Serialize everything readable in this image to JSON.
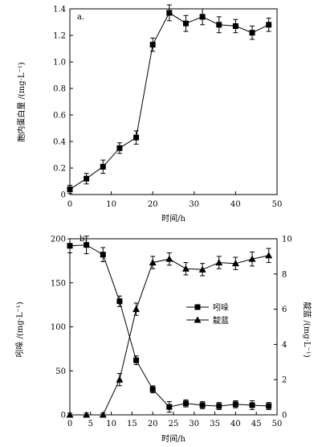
{
  "chart_data": [
    {
      "type": "line",
      "panel_label": "a.",
      "xlabel": "时间/h",
      "ylabel": "胞内蛋白量 /(mg·L⁻¹)",
      "xlim": [
        0,
        50
      ],
      "ylim": [
        0,
        1.4
      ],
      "xticks": [
        0,
        10,
        20,
        30,
        40,
        50
      ],
      "yticks": [
        0,
        0.2,
        0.4,
        0.6,
        0.8,
        1.0,
        1.2,
        1.4
      ],
      "ytick_labels": [
        "0",
        "0.2",
        "0.4",
        "0.6",
        "0.8",
        "1.0",
        "1.2",
        "1.4"
      ],
      "grid": false,
      "series": [
        {
          "marker": "square",
          "x": [
            0,
            4,
            8,
            12,
            16,
            20,
            24,
            28,
            32,
            36,
            40,
            44,
            48
          ],
          "y": [
            0.04,
            0.12,
            0.21,
            0.35,
            0.43,
            1.13,
            1.37,
            1.29,
            1.34,
            1.28,
            1.27,
            1.22,
            1.28
          ],
          "err": [
            0.03,
            0.04,
            0.05,
            0.04,
            0.05,
            0.05,
            0.06,
            0.06,
            0.06,
            0.06,
            0.05,
            0.05,
            0.05
          ]
        }
      ]
    },
    {
      "type": "line",
      "panel_label": "b.",
      "xlabel": "时间/h",
      "ylabel": "吲哚 /(mg·L⁻¹)",
      "y2label": "靛蓝 /(mg·L⁻¹)",
      "xlim": [
        0,
        50
      ],
      "ylim": [
        0,
        200
      ],
      "y2lim": [
        0,
        10
      ],
      "xticks": [
        0,
        5,
        10,
        15,
        20,
        25,
        30,
        35,
        40,
        45,
        50
      ],
      "yticks": [
        0,
        50,
        100,
        150,
        200
      ],
      "y2ticks": [
        0,
        2,
        4,
        6,
        8,
        10
      ],
      "legend_position": "center-right",
      "grid": false,
      "series": [
        {
          "name": "吲哚",
          "axis": "left",
          "marker": "square",
          "x": [
            0,
            4,
            8,
            12,
            16,
            20,
            24,
            28,
            32,
            36,
            40,
            44,
            48
          ],
          "y": [
            192,
            193,
            182,
            129,
            62,
            29,
            9,
            13,
            11,
            10,
            12,
            11,
            10
          ],
          "err": [
            8,
            10,
            8,
            6,
            5,
            4,
            6,
            4,
            4,
            4,
            4,
            5,
            4
          ]
        },
        {
          "name": "靛蓝",
          "axis": "right",
          "marker": "triangle",
          "x": [
            0,
            4,
            8,
            12,
            16,
            20,
            24,
            28,
            32,
            36,
            40,
            44,
            48
          ],
          "y": [
            0,
            0,
            0,
            2.0,
            6.0,
            8.65,
            8.85,
            8.3,
            8.25,
            8.65,
            8.6,
            8.85,
            9.05
          ],
          "err": [
            0.1,
            0.1,
            0.1,
            0.35,
            0.35,
            0.35,
            0.35,
            0.35,
            0.35,
            0.35,
            0.35,
            0.4,
            0.4
          ]
        }
      ]
    }
  ]
}
